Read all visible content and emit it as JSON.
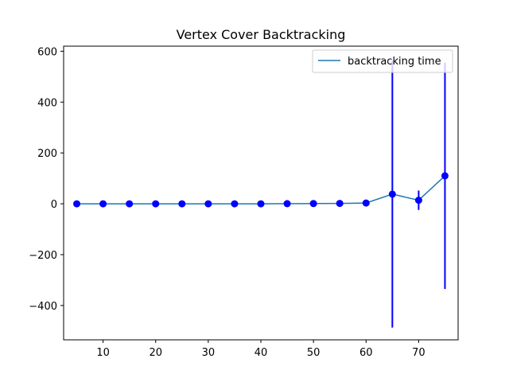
{
  "chart_data": {
    "type": "line",
    "title": "Vertex Cover Backtracking",
    "xlabel": "",
    "ylabel": "",
    "xlim": [
      2.5,
      77.5
    ],
    "ylim": [
      -535,
      620
    ],
    "xticks": [
      10,
      20,
      30,
      40,
      50,
      60,
      70
    ],
    "yticks": [
      -400,
      -200,
      0,
      200,
      400,
      600
    ],
    "grid": false,
    "legend": {
      "placement": "top-right",
      "entries": [
        "backtracking time"
      ]
    },
    "series": [
      {
        "name": "backtracking time",
        "line_color": "#1f77b4",
        "marker_color": "#0000ff",
        "errorbar_color": "#0000ff",
        "x": [
          5,
          10,
          15,
          20,
          25,
          30,
          35,
          40,
          45,
          50,
          55,
          60,
          65,
          70,
          75
        ],
        "y": [
          0,
          0,
          0,
          0,
          0,
          0,
          0,
          0,
          0.5,
          1,
          1.5,
          3,
          38,
          14,
          110
        ],
        "yerr": [
          0,
          0,
          0,
          0,
          0,
          0,
          0,
          0,
          0,
          0,
          0,
          0,
          525,
          38,
          445
        ]
      }
    ]
  }
}
